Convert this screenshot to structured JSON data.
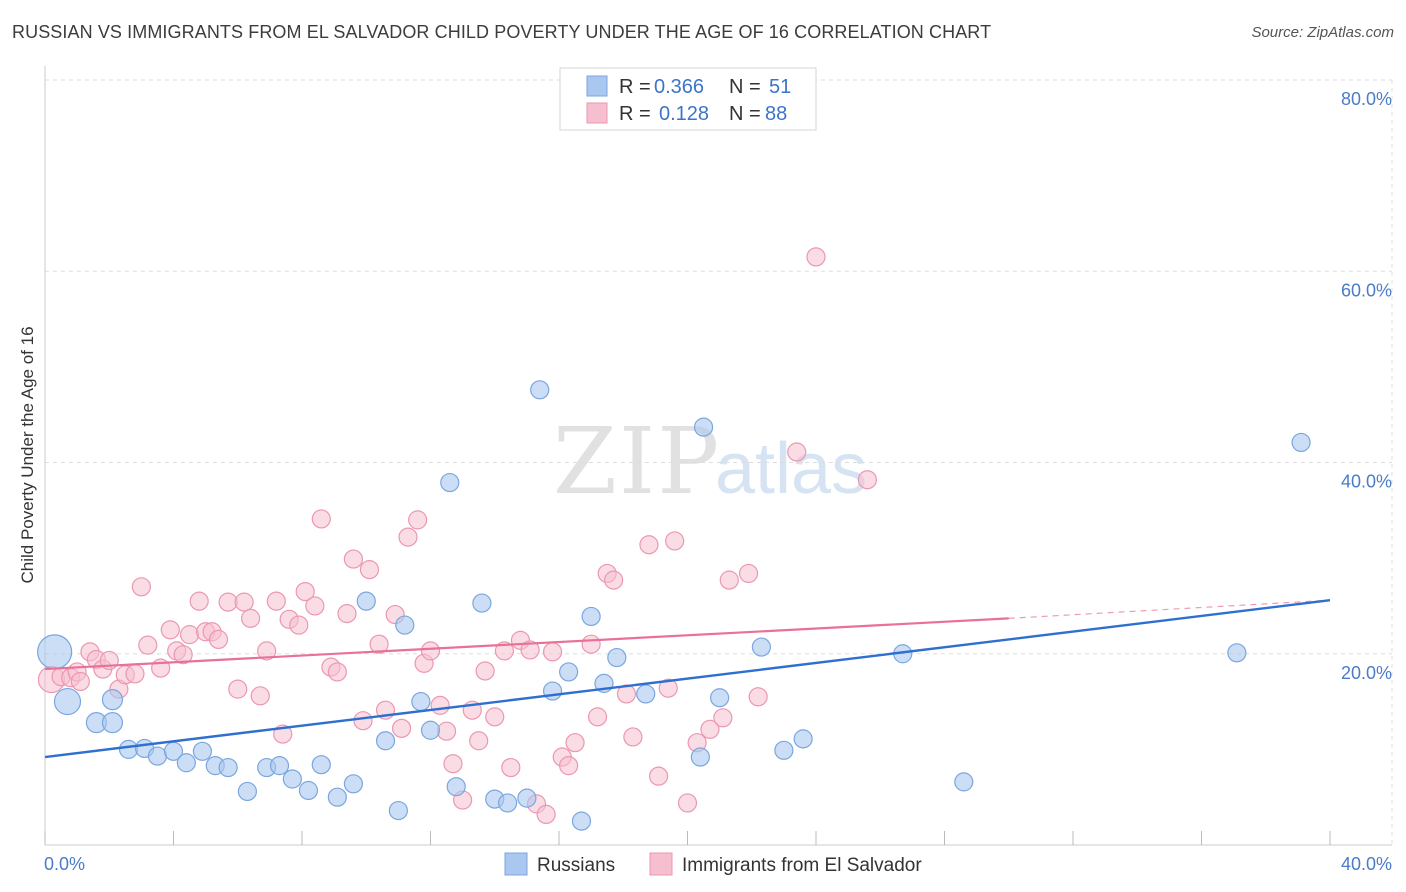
{
  "title": "RUSSIAN VS IMMIGRANTS FROM EL SALVADOR CHILD POVERTY UNDER THE AGE OF 16 CORRELATION CHART",
  "source": "Source: ZipAtlas.com",
  "watermark": {
    "zip": "ZIP",
    "atlas": "atlas"
  },
  "legend_top": [
    {
      "r_label": "R =",
      "r_value": "0.366",
      "n_label": "N =",
      "n_value": "51"
    },
    {
      "r_label": "R =",
      "r_value": "0.128",
      "n_label": "N =",
      "n_value": "88"
    }
  ],
  "legend_bottom": [
    "Russians",
    "Immigrants from El Salvador"
  ],
  "colors": {
    "blue_fill": "#aac8ef",
    "blue_stroke": "#7aa6df",
    "blue_line": "#2f6fcf",
    "pink_fill": "#f6bfd0",
    "pink_stroke": "#ec97b1",
    "pink_line": "#e8709a",
    "tick_text": "#4a7cc9",
    "grid": "#dddddd"
  },
  "chart_data": {
    "type": "scatter",
    "title": "RUSSIAN VS IMMIGRANTS FROM EL SALVADOR CHILD POVERTY UNDER THE AGE OF 16 CORRELATION CHART",
    "xlabel": "",
    "ylabel": "Child Poverty Under the Age of 16",
    "xlim": [
      0,
      40
    ],
    "ylim": [
      0,
      80
    ],
    "x_tick_labels": [
      "0.0%",
      "40.0%"
    ],
    "y_ticks": [
      20,
      40,
      60,
      80
    ],
    "y_tick_labels": [
      "20.0%",
      "40.0%",
      "60.0%",
      "80.0%"
    ],
    "grid": true,
    "legend_position": "top-center",
    "series": [
      {
        "name": "Russians",
        "color": "#aac8ef",
        "r": 0.366,
        "n": 51,
        "trend": {
          "x": [
            0,
            40
          ],
          "y": [
            9.2,
            25.6
          ],
          "style": "solid"
        },
        "points": [
          [
            0.3,
            20.2
          ],
          [
            0.7,
            15.0
          ],
          [
            1.6,
            12.8
          ],
          [
            2.1,
            12.8
          ],
          [
            2.1,
            15.2
          ],
          [
            2.6,
            10.0
          ],
          [
            3.1,
            10.1
          ],
          [
            3.5,
            9.3
          ],
          [
            4.0,
            9.8
          ],
          [
            4.4,
            8.6
          ],
          [
            4.9,
            9.8
          ],
          [
            5.3,
            8.3
          ],
          [
            5.7,
            8.1
          ],
          [
            6.3,
            5.6
          ],
          [
            6.9,
            8.1
          ],
          [
            7.3,
            8.3
          ],
          [
            7.7,
            6.9
          ],
          [
            8.2,
            5.7
          ],
          [
            8.6,
            8.4
          ],
          [
            9.1,
            5.0
          ],
          [
            9.6,
            6.4
          ],
          [
            10.0,
            25.5
          ],
          [
            10.6,
            10.9
          ],
          [
            11.0,
            3.6
          ],
          [
            11.2,
            23.0
          ],
          [
            11.7,
            15.0
          ],
          [
            12.0,
            12.0
          ],
          [
            12.6,
            37.9
          ],
          [
            12.8,
            6.1
          ],
          [
            13.6,
            25.3
          ],
          [
            14.0,
            4.8
          ],
          [
            14.4,
            4.4
          ],
          [
            15.0,
            4.9
          ],
          [
            15.4,
            47.6
          ],
          [
            15.8,
            16.1
          ],
          [
            16.3,
            18.1
          ],
          [
            16.7,
            2.5
          ],
          [
            17.0,
            23.9
          ],
          [
            17.4,
            16.9
          ],
          [
            17.8,
            19.6
          ],
          [
            18.7,
            15.8
          ],
          [
            20.4,
            9.2
          ],
          [
            20.5,
            43.7
          ],
          [
            21.0,
            15.4
          ],
          [
            22.3,
            20.7
          ],
          [
            23.0,
            9.9
          ],
          [
            23.6,
            11.1
          ],
          [
            26.7,
            20.0
          ],
          [
            28.6,
            6.6
          ],
          [
            37.1,
            20.1
          ],
          [
            39.1,
            42.1
          ]
        ]
      },
      {
        "name": "Immigrants from El Salvador",
        "color": "#f6bfd0",
        "r": 0.128,
        "n": 88,
        "trend": {
          "x": [
            0,
            30,
            40
          ],
          "y": [
            18.4,
            23.7,
            25.6
          ],
          "style": "solid-then-dashed"
        },
        "points": [
          [
            0.2,
            17.3
          ],
          [
            0.5,
            17.6
          ],
          [
            0.8,
            17.5
          ],
          [
            1.0,
            18.1
          ],
          [
            1.1,
            17.1
          ],
          [
            1.4,
            20.2
          ],
          [
            1.6,
            19.4
          ],
          [
            1.8,
            18.4
          ],
          [
            2.0,
            19.3
          ],
          [
            2.3,
            16.3
          ],
          [
            2.5,
            17.8
          ],
          [
            2.8,
            17.9
          ],
          [
            3.0,
            27.0
          ],
          [
            3.2,
            20.9
          ],
          [
            3.6,
            18.5
          ],
          [
            3.9,
            22.5
          ],
          [
            4.1,
            20.3
          ],
          [
            4.3,
            19.9
          ],
          [
            4.5,
            22.0
          ],
          [
            4.8,
            25.5
          ],
          [
            5.0,
            22.3
          ],
          [
            5.2,
            22.3
          ],
          [
            5.4,
            21.5
          ],
          [
            5.7,
            25.4
          ],
          [
            6.0,
            16.3
          ],
          [
            6.2,
            25.4
          ],
          [
            6.4,
            23.7
          ],
          [
            6.7,
            15.6
          ],
          [
            6.9,
            20.3
          ],
          [
            7.2,
            25.5
          ],
          [
            7.4,
            11.6
          ],
          [
            7.6,
            23.6
          ],
          [
            7.9,
            23.0
          ],
          [
            8.1,
            26.5
          ],
          [
            8.4,
            25.0
          ],
          [
            8.6,
            34.1
          ],
          [
            8.9,
            18.6
          ],
          [
            9.1,
            18.1
          ],
          [
            9.4,
            24.2
          ],
          [
            9.6,
            29.9
          ],
          [
            9.9,
            13.0
          ],
          [
            10.1,
            28.8
          ],
          [
            10.4,
            21.0
          ],
          [
            10.6,
            14.1
          ],
          [
            10.9,
            24.1
          ],
          [
            11.1,
            12.2
          ],
          [
            11.3,
            32.2
          ],
          [
            11.6,
            34.0
          ],
          [
            11.8,
            19.0
          ],
          [
            12.0,
            20.3
          ],
          [
            12.3,
            14.6
          ],
          [
            12.5,
            11.9
          ],
          [
            12.7,
            8.5
          ],
          [
            13.0,
            4.7
          ],
          [
            13.3,
            14.1
          ],
          [
            13.5,
            10.9
          ],
          [
            13.7,
            18.2
          ],
          [
            14.0,
            13.4
          ],
          [
            14.3,
            20.3
          ],
          [
            14.5,
            8.1
          ],
          [
            14.8,
            21.4
          ],
          [
            15.1,
            20.4
          ],
          [
            15.3,
            4.3
          ],
          [
            15.6,
            3.2
          ],
          [
            15.8,
            20.2
          ],
          [
            16.1,
            9.2
          ],
          [
            16.3,
            8.3
          ],
          [
            16.5,
            10.7
          ],
          [
            17.0,
            21.0
          ],
          [
            17.2,
            13.4
          ],
          [
            17.5,
            28.4
          ],
          [
            17.7,
            27.7
          ],
          [
            18.1,
            15.8
          ],
          [
            18.3,
            11.3
          ],
          [
            18.8,
            31.4
          ],
          [
            19.1,
            7.2
          ],
          [
            19.4,
            16.4
          ],
          [
            19.6,
            31.8
          ],
          [
            20.0,
            4.4
          ],
          [
            20.3,
            10.7
          ],
          [
            20.7,
            12.1
          ],
          [
            21.1,
            13.3
          ],
          [
            21.3,
            27.7
          ],
          [
            21.9,
            28.4
          ],
          [
            22.2,
            15.5
          ],
          [
            23.4,
            41.1
          ],
          [
            24.0,
            61.5
          ],
          [
            25.6,
            38.2
          ]
        ]
      }
    ]
  }
}
